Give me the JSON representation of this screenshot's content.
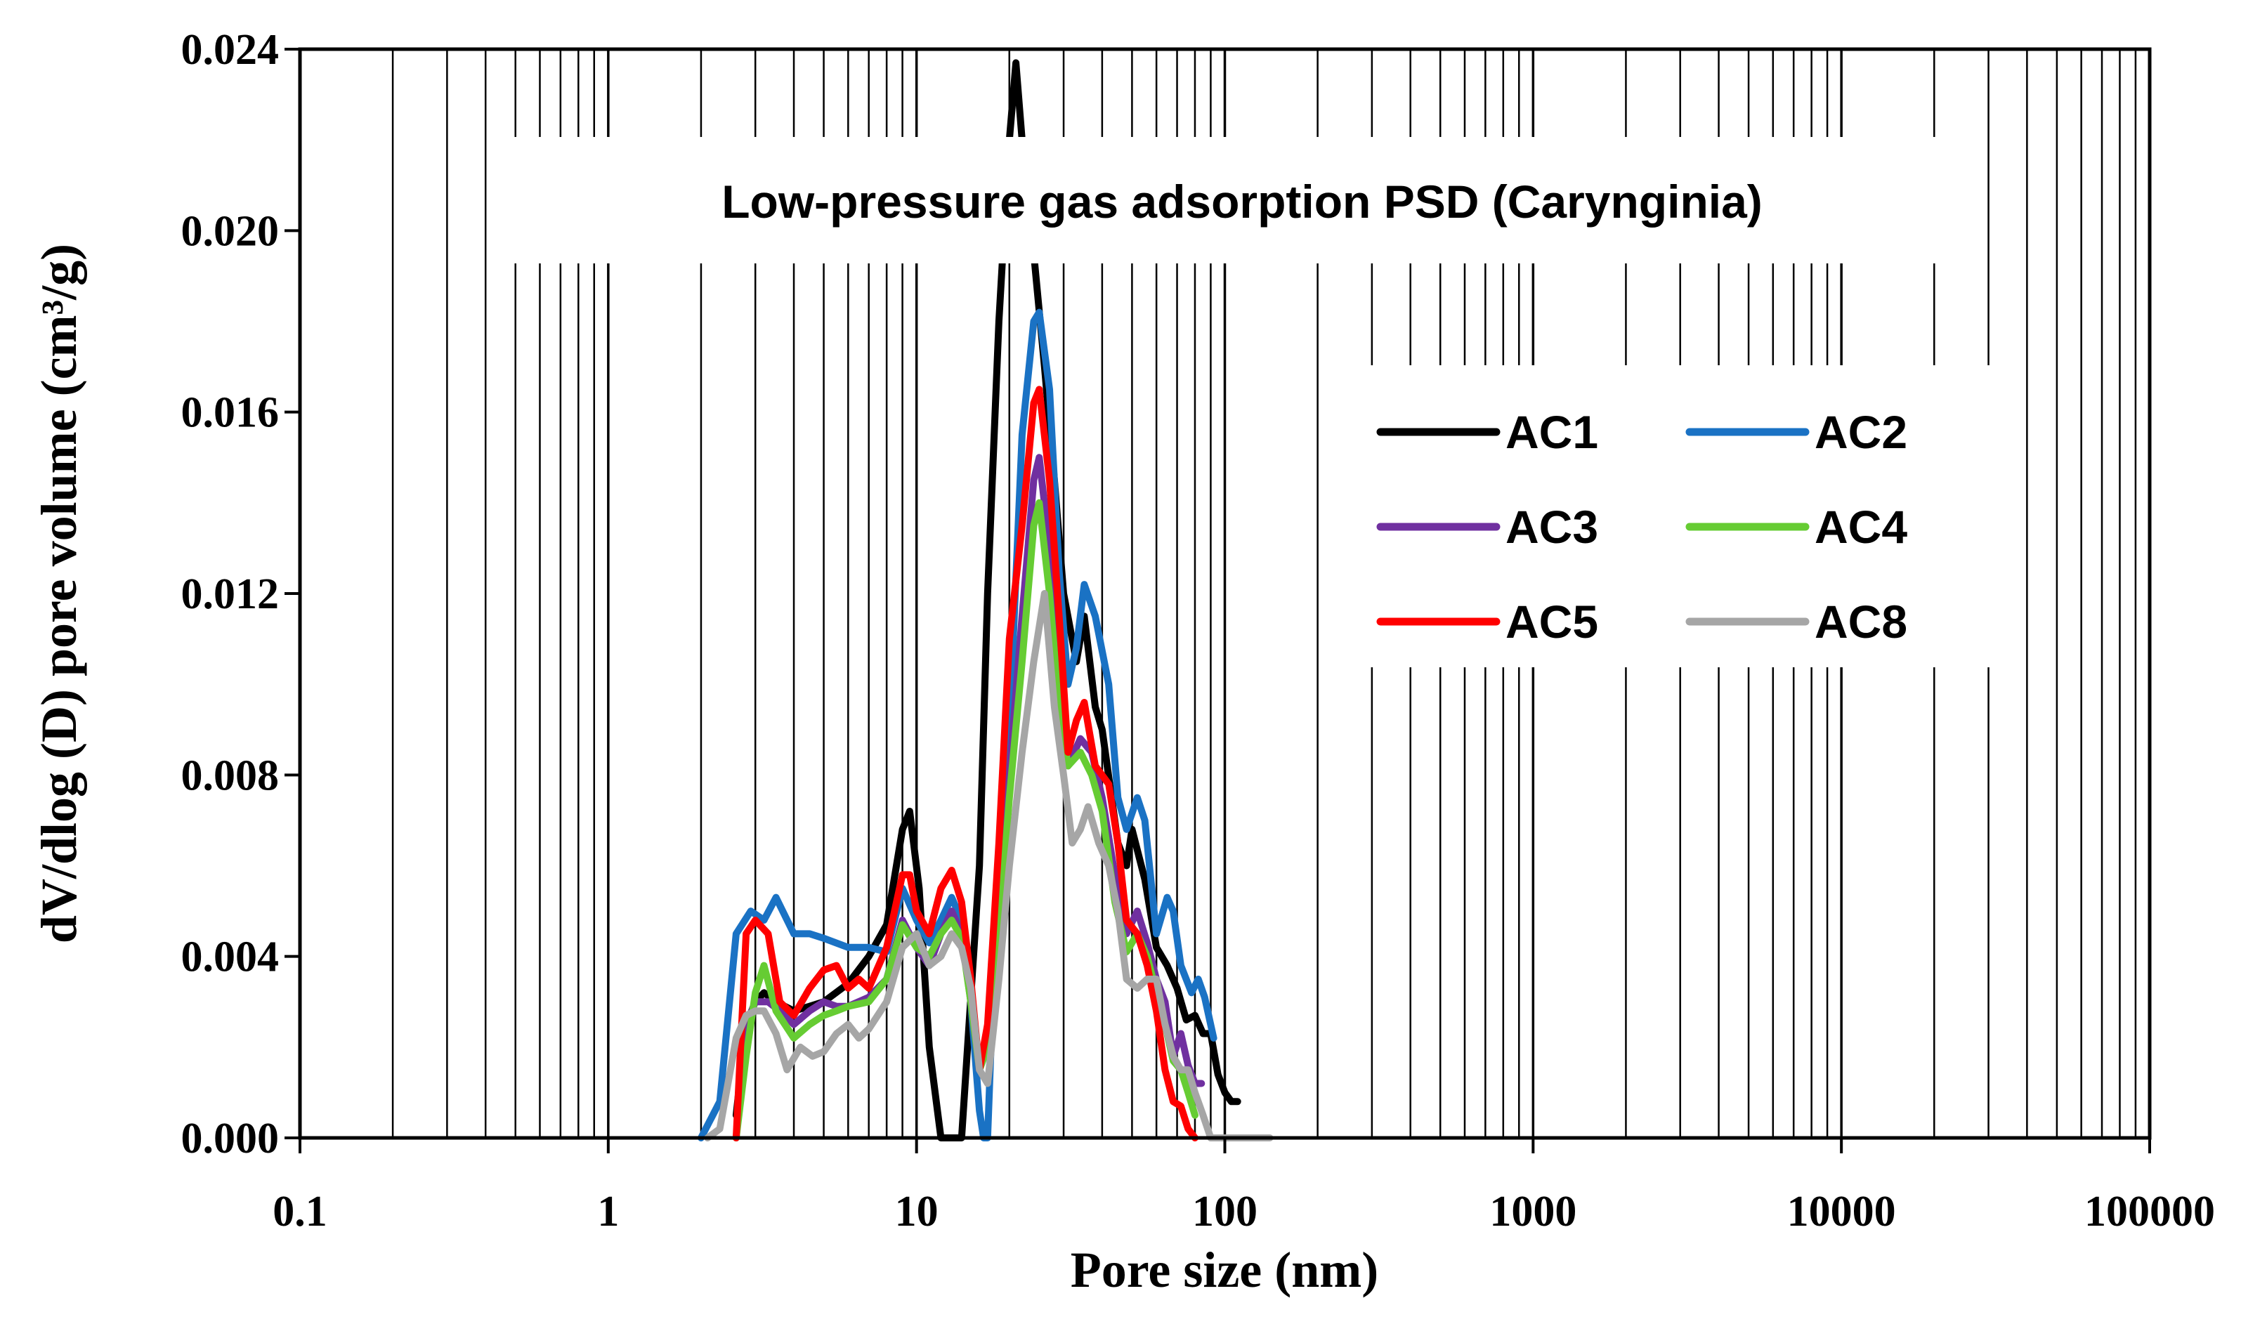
{
  "chart_data": {
    "type": "line",
    "title": "Low-pressure gas adsorption PSD (Carynginia)",
    "xlabel": "Pore size (nm)",
    "ylabel": "dV/dlog (D) pore volume (cm³/g)",
    "xscale": "log",
    "xlim": [
      0.1,
      100000
    ],
    "ylim": [
      0,
      0.024
    ],
    "grid": "vertical",
    "legend_position": "top-right",
    "x_tick_labels": [
      "0.1",
      "1",
      "10",
      "100",
      "1000",
      "10000",
      "100000"
    ],
    "y_tick_labels": [
      "0.000",
      "0.004",
      "0.008",
      "0.012",
      "0.016",
      "0.020",
      "0.024"
    ],
    "series": [
      {
        "name": "AC1",
        "color": "#000000",
        "x": [
          2.6,
          2.8,
          3.0,
          3.2,
          3.5,
          4.0,
          4.5,
          5.0,
          6.0,
          7.0,
          8.0,
          9.0,
          9.5,
          10.2,
          11.0,
          12.0,
          14.0,
          16.0,
          17.0,
          18.5,
          20.0,
          21.0,
          22.0,
          24.0,
          26.0,
          28.0,
          30.0,
          33.0,
          35.0,
          38.0,
          40.0,
          45.0,
          48.0,
          50.0,
          55.0,
          60.0,
          65.0,
          70.0,
          75.0,
          80.0,
          85.0,
          90.0,
          95.0,
          100.0,
          105.0,
          110.0
        ],
        "y": [
          0.0005,
          0.0025,
          0.003,
          0.0032,
          0.003,
          0.0028,
          0.0029,
          0.003,
          0.0034,
          0.004,
          0.0047,
          0.0068,
          0.0072,
          0.0055,
          0.002,
          0.0,
          0.0,
          0.006,
          0.012,
          0.018,
          0.022,
          0.0237,
          0.022,
          0.0195,
          0.017,
          0.0145,
          0.012,
          0.0105,
          0.0115,
          0.0095,
          0.009,
          0.0065,
          0.006,
          0.0068,
          0.0057,
          0.0042,
          0.0038,
          0.0033,
          0.0026,
          0.0027,
          0.0023,
          0.0023,
          0.0014,
          0.001,
          0.0008,
          0.0008
        ]
      },
      {
        "name": "AC2",
        "color": "#1a72c4",
        "x": [
          2.0,
          2.3,
          2.6,
          2.9,
          3.2,
          3.5,
          4.0,
          4.5,
          5.0,
          6.0,
          7.0,
          8.0,
          9.0,
          10.0,
          11.0,
          12.0,
          13.0,
          14.0,
          15.0,
          16.0,
          16.5,
          17.0,
          18.0,
          20.0,
          22.0,
          24.0,
          25.0,
          27.0,
          29.0,
          31.0,
          33.0,
          35.0,
          38.0,
          42.0,
          45.0,
          48.0,
          52.0,
          55.0,
          60.0,
          65.0,
          68.0,
          72.0,
          78.0,
          82.0,
          86.0,
          92.0
        ],
        "y": [
          0.0,
          0.0008,
          0.0045,
          0.005,
          0.0048,
          0.0053,
          0.0045,
          0.0045,
          0.0044,
          0.0042,
          0.0042,
          0.0041,
          0.0055,
          0.0048,
          0.0043,
          0.0048,
          0.0053,
          0.0048,
          0.003,
          0.0006,
          0.0,
          0.0,
          0.0045,
          0.009,
          0.0155,
          0.018,
          0.0182,
          0.0165,
          0.0125,
          0.01,
          0.0108,
          0.0122,
          0.0115,
          0.01,
          0.0075,
          0.0068,
          0.0075,
          0.007,
          0.0045,
          0.0053,
          0.005,
          0.0038,
          0.0032,
          0.0035,
          0.0031,
          0.0022
        ]
      },
      {
        "name": "AC3",
        "color": "#7030a0",
        "x": [
          2.6,
          2.8,
          3.0,
          3.3,
          3.6,
          4.0,
          4.5,
          5.0,
          5.5,
          6.0,
          7.0,
          8.0,
          9.0,
          10.0,
          11.0,
          12.0,
          13.0,
          14.0,
          15.0,
          16.0,
          17.0,
          18.5,
          20.0,
          22.0,
          24.0,
          25.0,
          27.0,
          29.0,
          31.0,
          34.0,
          37.0,
          40.0,
          44.0,
          48.0,
          52.0,
          56.0,
          60.0,
          64.0,
          68.0,
          72.0,
          76.0,
          80.0,
          84.0
        ],
        "y": [
          0.0,
          0.0025,
          0.003,
          0.003,
          0.0028,
          0.0025,
          0.0028,
          0.003,
          0.0029,
          0.0029,
          0.0031,
          0.0035,
          0.0048,
          0.0042,
          0.0038,
          0.0045,
          0.005,
          0.0045,
          0.003,
          0.0015,
          0.002,
          0.005,
          0.008,
          0.0115,
          0.0145,
          0.015,
          0.013,
          0.01,
          0.0082,
          0.0088,
          0.0085,
          0.0075,
          0.0058,
          0.0045,
          0.005,
          0.0043,
          0.0035,
          0.003,
          0.0018,
          0.0023,
          0.0016,
          0.0012,
          0.0012
        ]
      },
      {
        "name": "AC4",
        "color": "#66cc33",
        "x": [
          2.6,
          2.8,
          3.0,
          3.2,
          3.5,
          4.0,
          4.5,
          5.0,
          5.5,
          6.0,
          7.0,
          8.0,
          9.0,
          10.0,
          11.0,
          12.0,
          13.0,
          14.0,
          15.0,
          16.0,
          17.0,
          18.5,
          20.0,
          22.0,
          24.0,
          25.0,
          27.0,
          29.0,
          31.0,
          34.0,
          37.0,
          40.0,
          44.0,
          48.0,
          52.0,
          56.0,
          60.0,
          64.0,
          68.0,
          72.0,
          76.0,
          80.0
        ],
        "y": [
          0.0,
          0.0018,
          0.0032,
          0.0038,
          0.0028,
          0.0022,
          0.0025,
          0.0027,
          0.0028,
          0.0029,
          0.003,
          0.0035,
          0.0047,
          0.0042,
          0.004,
          0.0045,
          0.0048,
          0.0044,
          0.003,
          0.0015,
          0.002,
          0.0045,
          0.0075,
          0.0105,
          0.0135,
          0.014,
          0.012,
          0.0095,
          0.0082,
          0.0085,
          0.008,
          0.0072,
          0.0052,
          0.0041,
          0.0045,
          0.004,
          0.0032,
          0.0025,
          0.0017,
          0.0015,
          0.001,
          0.0005
        ]
      },
      {
        "name": "AC5",
        "color": "#ff0000",
        "x": [
          2.6,
          2.8,
          3.0,
          3.3,
          3.6,
          4.0,
          4.5,
          5.0,
          5.5,
          6.0,
          6.5,
          7.0,
          8.0,
          9.0,
          9.5,
          10.0,
          11.0,
          12.0,
          13.0,
          14.0,
          15.0,
          16.0,
          17.0,
          18.5,
          20.0,
          22.0,
          24.0,
          25.0,
          27.0,
          29.0,
          31.0,
          33.0,
          35.0,
          38.0,
          42.0,
          45.0,
          48.0,
          52.0,
          56.0,
          60.0,
          64.0,
          68.0,
          72.0,
          76.0,
          80.0
        ],
        "y": [
          0.0,
          0.0045,
          0.0048,
          0.0045,
          0.003,
          0.0027,
          0.0033,
          0.0037,
          0.0038,
          0.0033,
          0.0035,
          0.0033,
          0.0042,
          0.0058,
          0.0058,
          0.005,
          0.0045,
          0.0055,
          0.0059,
          0.0052,
          0.0035,
          0.0015,
          0.0025,
          0.0065,
          0.011,
          0.0135,
          0.0162,
          0.0165,
          0.0145,
          0.0115,
          0.0085,
          0.0092,
          0.0096,
          0.0082,
          0.0078,
          0.0065,
          0.0048,
          0.0045,
          0.0038,
          0.0028,
          0.0015,
          0.0008,
          0.0007,
          0.0002,
          0.0
        ]
      },
      {
        "name": "AC8",
        "color": "#a6a6a6",
        "x": [
          2.1,
          2.3,
          2.6,
          2.8,
          3.0,
          3.2,
          3.5,
          3.8,
          4.2,
          4.6,
          5.0,
          5.5,
          6.0,
          6.5,
          7.0,
          8.0,
          9.0,
          10.0,
          11.0,
          12.0,
          13.0,
          14.0,
          15.0,
          16.0,
          17.0,
          18.5,
          20.0,
          22.0,
          24.0,
          26.0,
          28.0,
          30.0,
          32.0,
          34.0,
          36.0,
          39.0,
          42.0,
          45.0,
          48.0,
          52.0,
          56.0,
          60.0,
          64.0,
          68.0,
          72.0,
          76.0,
          80.0,
          85.0,
          90.0,
          100.0,
          115.0,
          130.0,
          140.0
        ],
        "y": [
          0.0,
          0.0002,
          0.0022,
          0.0027,
          0.0028,
          0.0028,
          0.0023,
          0.0015,
          0.002,
          0.0018,
          0.0019,
          0.0023,
          0.0025,
          0.0022,
          0.0024,
          0.003,
          0.0042,
          0.0045,
          0.0038,
          0.004,
          0.0045,
          0.0042,
          0.0033,
          0.0015,
          0.0012,
          0.0035,
          0.006,
          0.0085,
          0.0105,
          0.012,
          0.0095,
          0.008,
          0.0065,
          0.0068,
          0.0073,
          0.0065,
          0.006,
          0.005,
          0.0035,
          0.0033,
          0.0035,
          0.0035,
          0.0025,
          0.0018,
          0.0015,
          0.0015,
          0.001,
          0.0005,
          0.0,
          0.0,
          0.0,
          0.0,
          0.0
        ]
      }
    ]
  }
}
